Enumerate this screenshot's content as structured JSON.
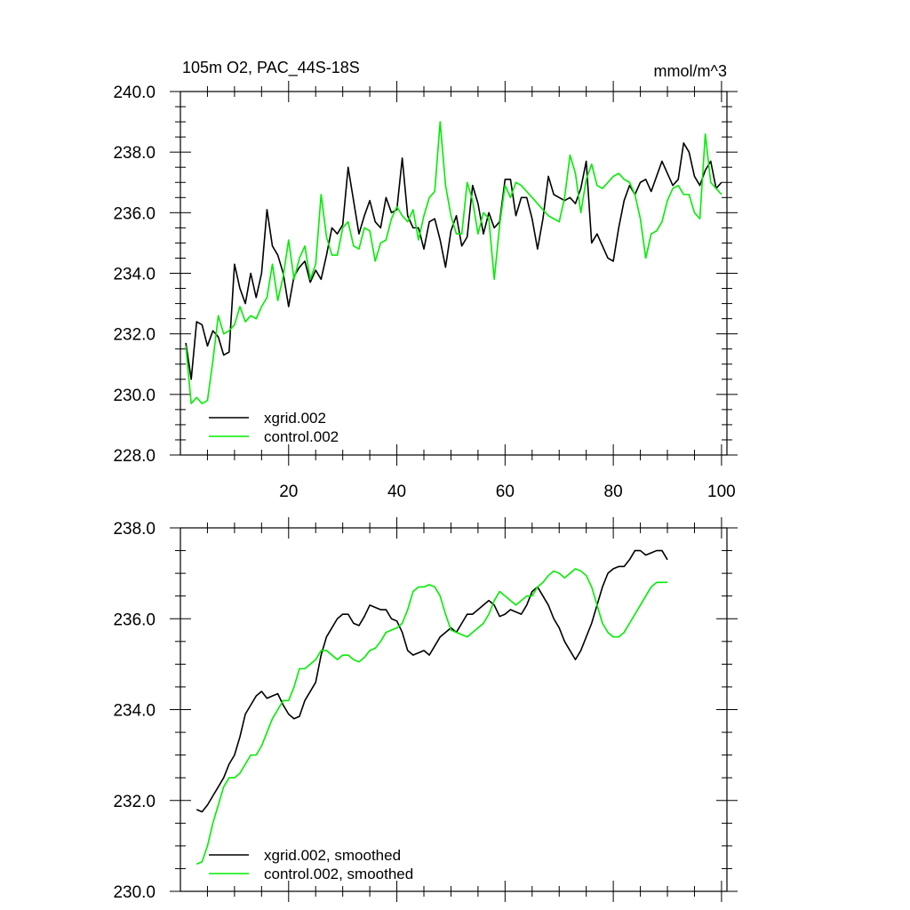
{
  "colors": {
    "xgrid": "#000000",
    "control": "#00ee00",
    "axis": "#000000",
    "background": "#ffffff"
  },
  "chart_data": [
    {
      "type": "line",
      "title": "105m O2, PAC_44S-18S",
      "units": "mmol/m^3",
      "xlim": [
        0,
        101
      ],
      "ylim": [
        228,
        240
      ],
      "x_start": 1,
      "x_tick_labels": [
        "20",
        "40",
        "60",
        "80",
        "100"
      ],
      "y_tick_labels": [
        "240.0",
        "238.0",
        "236.0",
        "234.0",
        "232.0",
        "230.0",
        "228.0"
      ],
      "legend_position": "lower-left",
      "series": [
        {
          "name": "xgrid.002",
          "color": "#000000",
          "values": [
            231.7,
            230.5,
            232.4,
            232.3,
            231.6,
            232.1,
            231.9,
            231.3,
            231.4,
            234.3,
            233.5,
            233.0,
            234.0,
            233.2,
            234.0,
            236.1,
            234.9,
            234.6,
            234.0,
            232.9,
            233.9,
            234.2,
            234.4,
            233.7,
            234.1,
            233.8,
            234.6,
            235.5,
            235.3,
            235.6,
            237.5,
            236.4,
            235.3,
            235.9,
            236.4,
            235.7,
            235.5,
            236.5,
            236.0,
            236.1,
            237.8,
            235.9,
            235.5,
            235.5,
            234.8,
            235.7,
            235.8,
            235.1,
            234.2,
            235.4,
            235.9,
            234.9,
            235.2,
            236.9,
            236.3,
            235.3,
            236.0,
            235.5,
            235.7,
            237.1,
            237.1,
            235.9,
            236.5,
            236.5,
            235.8,
            234.8,
            235.8,
            237.2,
            236.6,
            236.5,
            236.4,
            236.5,
            236.3,
            236.8,
            237.7,
            235.0,
            235.3,
            234.9,
            234.5,
            234.4,
            235.5,
            236.4,
            236.9,
            236.6,
            237.0,
            237.1,
            236.7,
            237.2,
            237.7,
            237.3,
            236.9,
            237.1,
            238.3,
            238.0,
            237.2,
            236.9,
            237.4,
            237.7,
            236.8,
            237.0
          ]
        },
        {
          "name": "control.002",
          "color": "#00ee00",
          "values": [
            231.6,
            229.7,
            229.9,
            229.7,
            229.8,
            231.1,
            232.6,
            232.0,
            232.1,
            232.3,
            232.9,
            232.4,
            232.6,
            232.5,
            232.9,
            233.2,
            234.3,
            233.1,
            233.9,
            235.1,
            233.8,
            234.5,
            234.9,
            233.8,
            234.3,
            236.6,
            235.2,
            234.6,
            234.6,
            235.5,
            235.7,
            234.9,
            234.8,
            235.5,
            235.4,
            234.4,
            235.0,
            235.1,
            235.8,
            236.2,
            235.9,
            235.7,
            236.1,
            235.1,
            235.9,
            236.5,
            236.7,
            239.0,
            236.9,
            235.9,
            235.3,
            235.3,
            237.0,
            236.4,
            235.3,
            236.0,
            235.8,
            233.8,
            235.6,
            236.9,
            236.5,
            237.0,
            236.9,
            236.7,
            236.5,
            236.3,
            236.1,
            235.9,
            235.8,
            235.7,
            236.5,
            237.9,
            237.3,
            236.0,
            237.1,
            237.6,
            236.9,
            236.8,
            237.0,
            237.2,
            237.3,
            237.1,
            237.0,
            236.6,
            235.8,
            234.5,
            235.3,
            235.4,
            235.7,
            236.4,
            236.8,
            236.9,
            236.6,
            236.6,
            236.0,
            235.8,
            238.6,
            237.0,
            236.8,
            236.6
          ]
        }
      ]
    },
    {
      "type": "line",
      "title": "",
      "xlim": [
        0,
        101
      ],
      "ylim": [
        230,
        238
      ],
      "x_start": 1,
      "y_tick_labels": [
        "238.0",
        "236.0",
        "234.0",
        "232.0",
        "230.0"
      ],
      "legend_position": "lower-left",
      "series": [
        {
          "name": "xgrid.002, smoothed",
          "color": "#000000",
          "start_index": 3,
          "values": [
            231.8,
            231.75,
            231.9,
            232.1,
            232.3,
            232.5,
            232.8,
            233.0,
            233.4,
            233.9,
            234.1,
            234.3,
            234.4,
            234.25,
            234.3,
            234.35,
            234.1,
            233.9,
            233.8,
            233.85,
            234.2,
            234.4,
            234.6,
            235.2,
            235.6,
            235.8,
            236.0,
            236.1,
            236.1,
            235.9,
            235.85,
            236.05,
            236.3,
            236.25,
            236.2,
            236.2,
            236.0,
            235.95,
            235.7,
            235.3,
            235.2,
            235.25,
            235.3,
            235.2,
            235.4,
            235.6,
            235.7,
            235.8,
            235.7,
            235.9,
            236.1,
            236.1,
            236.2,
            236.3,
            236.4,
            236.3,
            236.05,
            236.1,
            236.2,
            236.15,
            236.1,
            236.3,
            236.6,
            236.7,
            236.5,
            236.3,
            236.0,
            235.8,
            235.5,
            235.3,
            235.1,
            235.3,
            235.6,
            235.9,
            236.3,
            236.7,
            237.0,
            237.1,
            237.15,
            237.15,
            237.3,
            237.5,
            237.5,
            237.4,
            237.45,
            237.5,
            237.5,
            237.3
          ]
        },
        {
          "name": "control.002, smoothed",
          "color": "#00ee00",
          "start_index": 3,
          "values": [
            230.6,
            230.65,
            231.0,
            231.5,
            231.9,
            232.3,
            232.5,
            232.5,
            232.6,
            232.8,
            233.0,
            233.0,
            233.2,
            233.5,
            233.8,
            234.0,
            234.2,
            234.2,
            234.5,
            234.9,
            234.9,
            235.0,
            235.1,
            235.3,
            235.3,
            235.2,
            235.1,
            235.2,
            235.2,
            235.1,
            235.05,
            235.15,
            235.3,
            235.35,
            235.5,
            235.7,
            235.75,
            235.8,
            235.9,
            236.2,
            236.6,
            236.7,
            236.7,
            236.75,
            236.7,
            236.5,
            236.1,
            235.75,
            235.7,
            235.65,
            235.6,
            235.7,
            235.8,
            235.9,
            236.1,
            236.4,
            236.6,
            236.5,
            236.4,
            236.3,
            236.4,
            236.5,
            236.5,
            236.7,
            236.8,
            236.95,
            237.05,
            237.0,
            236.9,
            237.0,
            237.1,
            237.05,
            236.95,
            236.7,
            236.3,
            235.9,
            235.7,
            235.6,
            235.6,
            235.7,
            235.9,
            236.1,
            236.3,
            236.5,
            236.7,
            236.8,
            236.8,
            236.8
          ]
        }
      ]
    }
  ]
}
